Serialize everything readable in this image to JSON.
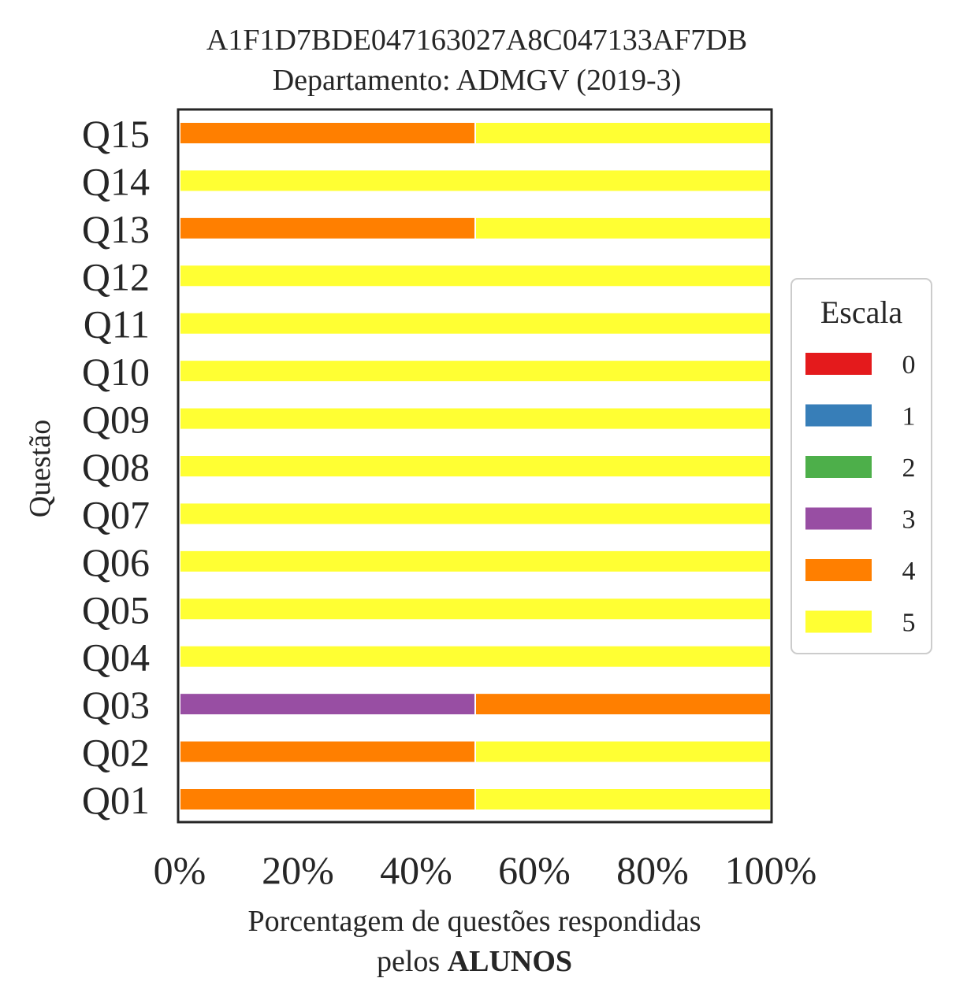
{
  "chart_data": {
    "type": "bar",
    "orientation": "horizontal",
    "stacked": true,
    "title": "A1F1D7BDE047163027A8C047133AF7DB",
    "subtitle": "Departamento: ADMGV (2019-3)",
    "xlabel_line1": "Porcentagem de questões respondidas",
    "xlabel_line2_prefix": "pelos ",
    "xlabel_line2_bold": "ALUNOS",
    "ylabel": "Questão",
    "xlim": [
      0,
      100
    ],
    "x_ticks": [
      "0%",
      "20%",
      "40%",
      "60%",
      "80%",
      "100%"
    ],
    "categories": [
      "Q01",
      "Q02",
      "Q03",
      "Q04",
      "Q05",
      "Q06",
      "Q07",
      "Q08",
      "Q09",
      "Q10",
      "Q11",
      "Q12",
      "Q13",
      "Q14",
      "Q15"
    ],
    "series": [
      {
        "name": "0",
        "color": "#e41a1c",
        "values": [
          0,
          0,
          0,
          0,
          0,
          0,
          0,
          0,
          0,
          0,
          0,
          0,
          0,
          0,
          0
        ]
      },
      {
        "name": "1",
        "color": "#377eb8",
        "values": [
          0,
          0,
          0,
          0,
          0,
          0,
          0,
          0,
          0,
          0,
          0,
          0,
          0,
          0,
          0
        ]
      },
      {
        "name": "2",
        "color": "#4daf4a",
        "values": [
          0,
          0,
          0,
          0,
          0,
          0,
          0,
          0,
          0,
          0,
          0,
          0,
          0,
          0,
          0
        ]
      },
      {
        "name": "3",
        "color": "#984ea3",
        "values": [
          0,
          0,
          50,
          0,
          0,
          0,
          0,
          0,
          0,
          0,
          0,
          0,
          0,
          0,
          0
        ]
      },
      {
        "name": "4",
        "color": "#ff7f00",
        "values": [
          50,
          50,
          50,
          0,
          0,
          0,
          0,
          0,
          0,
          0,
          0,
          0,
          50,
          0,
          50
        ]
      },
      {
        "name": "5",
        "color": "#ffff33",
        "values": [
          50,
          50,
          0,
          100,
          100,
          100,
          100,
          100,
          100,
          100,
          100,
          100,
          50,
          100,
          50
        ]
      }
    ],
    "legend": {
      "title": "Escala",
      "position": "right"
    },
    "grid": false
  }
}
